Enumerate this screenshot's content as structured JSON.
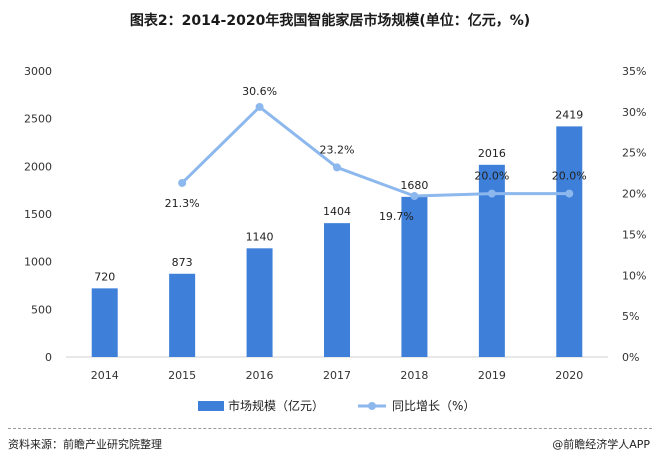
{
  "title": "图表2：2014-2020年我国智能家居市场规模(单位：亿元，%)",
  "colors": {
    "bar": "#3d7fd9",
    "line": "#8db8ee"
  },
  "chart_data": {
    "type": "bar",
    "categories": [
      "2014",
      "2015",
      "2016",
      "2017",
      "2018",
      "2019",
      "2020"
    ],
    "series": [
      {
        "name": "市场规模（亿元）",
        "type": "bar",
        "axis": "left",
        "values": [
          720,
          873,
          1140,
          1404,
          1680,
          2016,
          2419
        ],
        "labels": [
          "720",
          "873",
          "1140",
          "1404",
          "1680",
          "2016",
          "2419"
        ]
      },
      {
        "name": "同比增长（%）",
        "type": "line",
        "axis": "right",
        "values": [
          null,
          21.3,
          30.6,
          23.2,
          19.7,
          20.0,
          20.0
        ],
        "labels": [
          "",
          "21.3%",
          "30.6%",
          "23.2%",
          "19.7%",
          "20.0%",
          "20.0%"
        ]
      }
    ],
    "y_left": {
      "min": 0,
      "max": 3000,
      "ticks": [
        "0",
        "500",
        "1000",
        "1500",
        "2000",
        "2500",
        "3000"
      ]
    },
    "y_right": {
      "min": 0,
      "max": 35,
      "ticks": [
        "0%",
        "5%",
        "10%",
        "15%",
        "20%",
        "25%",
        "30%",
        "35%"
      ]
    },
    "grid": false,
    "legend_position": "bottom"
  },
  "footer": {
    "source": "资料来源：前瞻产业研究院整理",
    "credit": "@前瞻经济学人APP"
  }
}
